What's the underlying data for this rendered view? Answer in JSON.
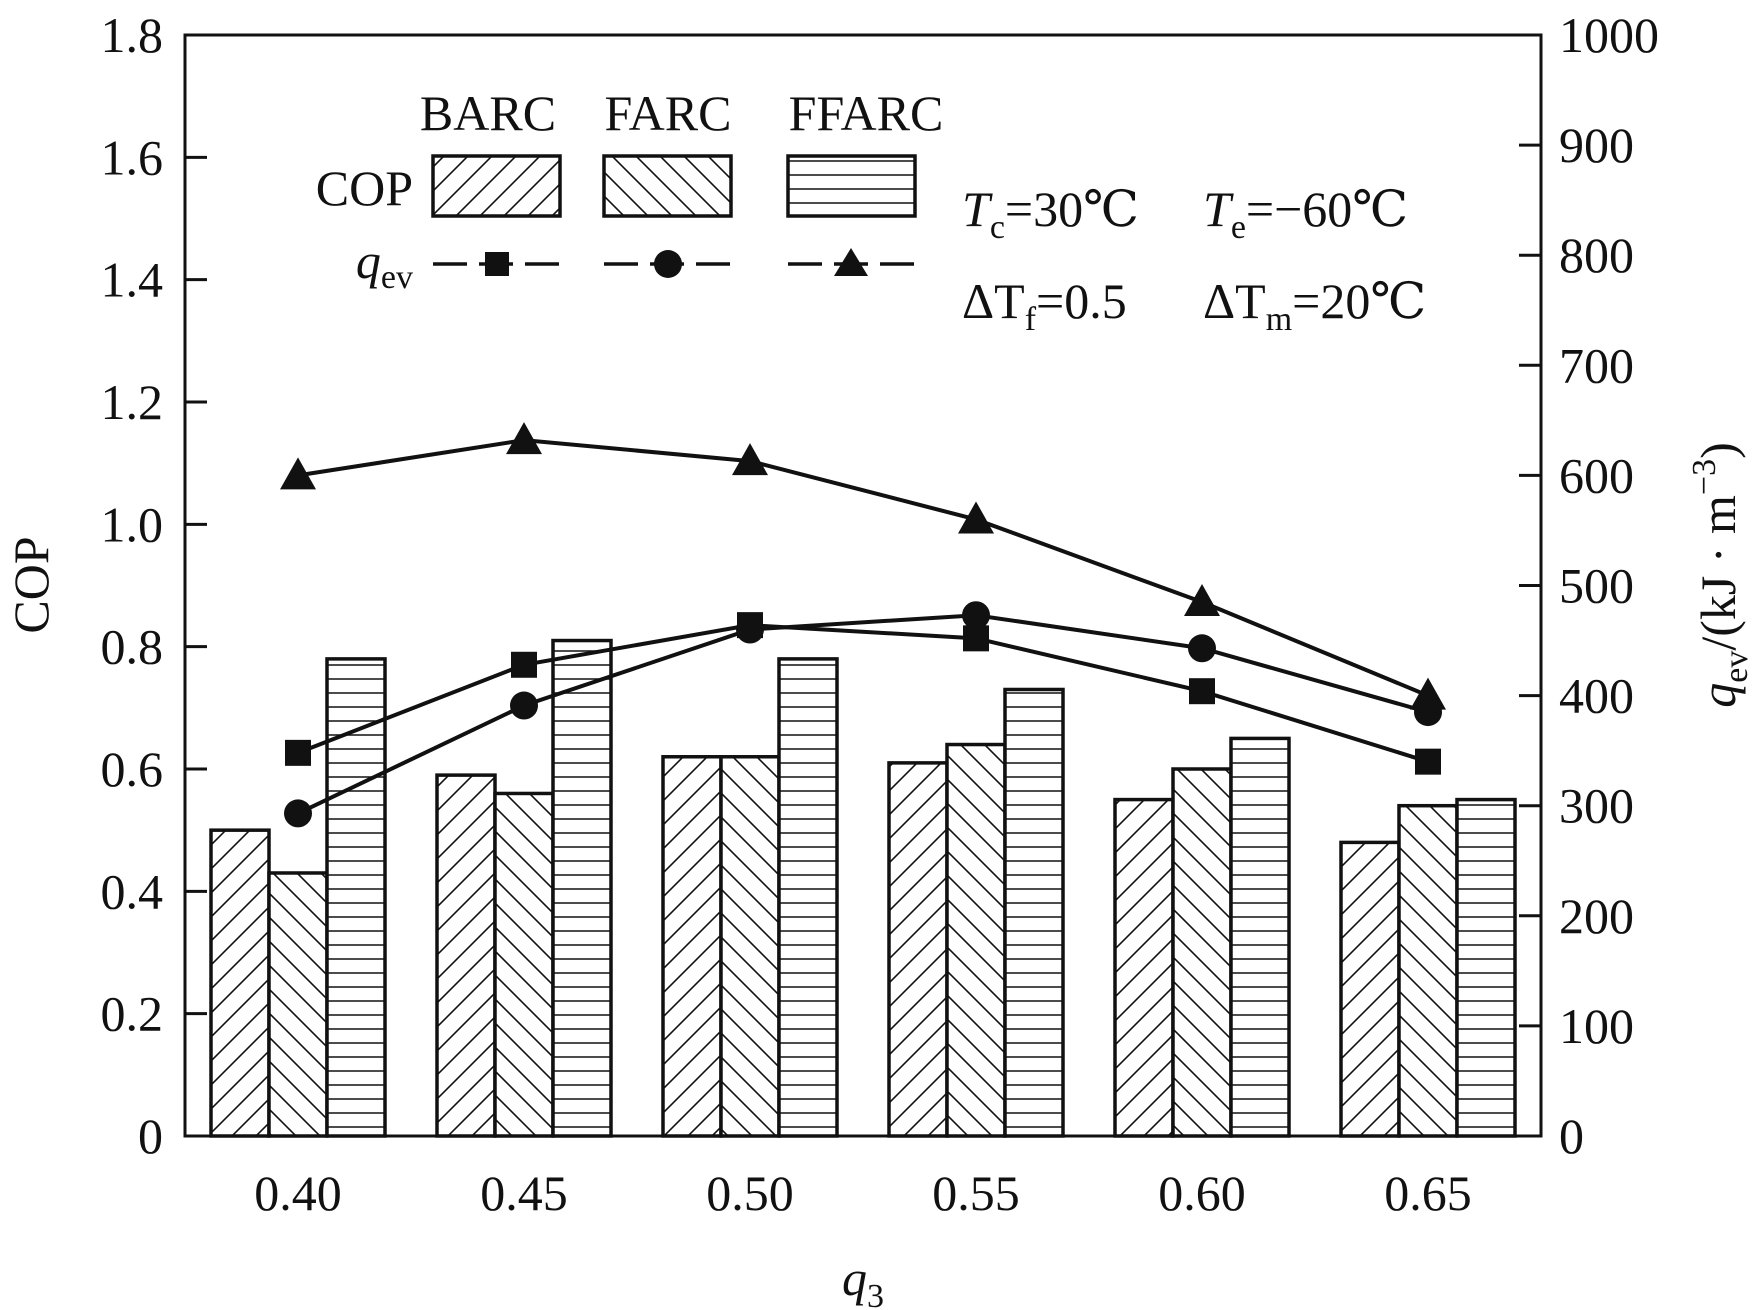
{
  "chart_data": {
    "type": "bar",
    "categories": [
      "0.40",
      "0.45",
      "0.50",
      "0.55",
      "0.60",
      "0.65"
    ],
    "x_label": {
      "main": "q",
      "sub": "3"
    },
    "y_left": {
      "label": "COP",
      "range": [
        0,
        1.8
      ],
      "ticks": [
        "0",
        "0.2",
        "0.4",
        "0.6",
        "0.8",
        "1.0",
        "1.2",
        "1.4",
        "1.6",
        "1.8"
      ]
    },
    "y_right": {
      "label_main": "q",
      "label_sub": "ev",
      "label_rest": "/(kJ · m",
      "label_sup": "−3",
      "label_end": ")",
      "range": [
        0,
        1000
      ],
      "ticks": [
        "0",
        "100",
        "200",
        "300",
        "400",
        "500",
        "600",
        "700",
        "800",
        "900",
        "1000"
      ]
    },
    "cop_series": [
      {
        "name": "BARC",
        "pattern": "diag-right",
        "values": [
          0.5,
          0.59,
          0.62,
          0.61,
          0.55,
          0.48
        ]
      },
      {
        "name": "FARC",
        "pattern": "diag-left",
        "values": [
          0.43,
          0.56,
          0.62,
          0.64,
          0.6,
          0.54
        ]
      },
      {
        "name": "FFARC",
        "pattern": "horizontal",
        "values": [
          0.78,
          0.81,
          0.78,
          0.73,
          0.65,
          0.55
        ]
      }
    ],
    "qev_series": [
      {
        "name": "BARC",
        "marker": "square",
        "values": [
          348,
          428,
          464,
          452,
          404,
          340
        ]
      },
      {
        "name": "FARC",
        "marker": "circle",
        "values": [
          293,
          391,
          460,
          473,
          443,
          385
        ]
      },
      {
        "name": "FFARC",
        "marker": "triangle",
        "values": [
          600,
          632,
          613,
          560,
          485,
          400
        ]
      }
    ],
    "legend": {
      "headers": [
        "BARC",
        "FARC",
        "FFARC"
      ],
      "cop_label": "COP",
      "qev_label_main": "q",
      "qev_label_sub": "ev"
    },
    "conditions": [
      {
        "sym": "T",
        "sub": "c",
        "val": "=30℃"
      },
      {
        "sym": "T",
        "sub": "e",
        "val": "=−60℃"
      },
      {
        "sym": "ΔT",
        "sub": "f",
        "val": "=0.5"
      },
      {
        "sym": "ΔT",
        "sub": "m",
        "val": "=20℃"
      }
    ]
  }
}
